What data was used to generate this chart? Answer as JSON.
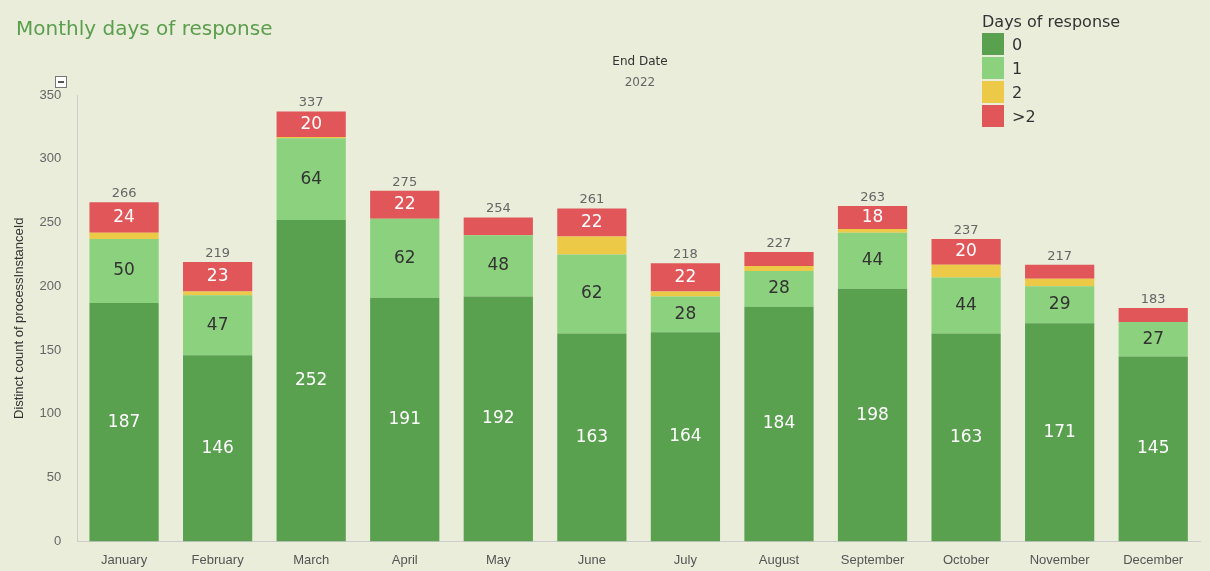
{
  "chart_data": {
    "type": "bar",
    "title": "Monthly days of response",
    "ylabel": "Distinct count of processInstanceId",
    "legend_title": "Days of response",
    "annotations": [
      "End Date",
      "2022"
    ],
    "categories": [
      "January",
      "February",
      "March",
      "April",
      "May",
      "June",
      "July",
      "August",
      "September",
      "October",
      "November",
      "December"
    ],
    "series": [
      {
        "name": "0",
        "color": "#59a14f",
        "values": [
          187,
          146,
          252,
          191,
          192,
          163,
          164,
          184,
          198,
          163,
          171,
          145
        ],
        "value_labels": [
          "187",
          "146",
          "252",
          "191",
          "192",
          "163",
          "164",
          "184",
          "198",
          "163",
          "171",
          "145"
        ]
      },
      {
        "name": "1",
        "color": "#8cd17d",
        "values": [
          50,
          47,
          64,
          62,
          48,
          62,
          28,
          28,
          44,
          44,
          29,
          27
        ],
        "value_labels": [
          "50",
          "47",
          "64",
          "62",
          "48",
          "62",
          "28",
          "28",
          "44",
          "44",
          "29",
          "27"
        ]
      },
      {
        "name": "2",
        "color": "#edc948",
        "values": [
          5,
          3,
          1,
          0,
          0,
          14,
          4,
          4,
          3,
          10,
          6,
          0
        ],
        "value_labels": [
          null,
          null,
          null,
          null,
          null,
          null,
          null,
          null,
          null,
          null,
          null,
          null
        ]
      },
      {
        "name": ">2",
        "color": "#e15759",
        "values": [
          24,
          23,
          20,
          22,
          14,
          22,
          22,
          11,
          18,
          20,
          11,
          11
        ],
        "value_labels": [
          "24",
          "23",
          "20",
          "22",
          null,
          "22",
          "22",
          null,
          "18",
          "20",
          null,
          null
        ]
      }
    ],
    "totals": [
      "266",
      "219",
      "337",
      "275",
      "254",
      "261",
      "218",
      "227",
      "263",
      "237",
      "217",
      "183"
    ],
    "stacked": true,
    "ylim": [
      0,
      350
    ],
    "yticks": [
      0,
      50,
      100,
      150,
      200,
      250,
      300,
      350
    ],
    "grid": false,
    "legend": "top right"
  }
}
